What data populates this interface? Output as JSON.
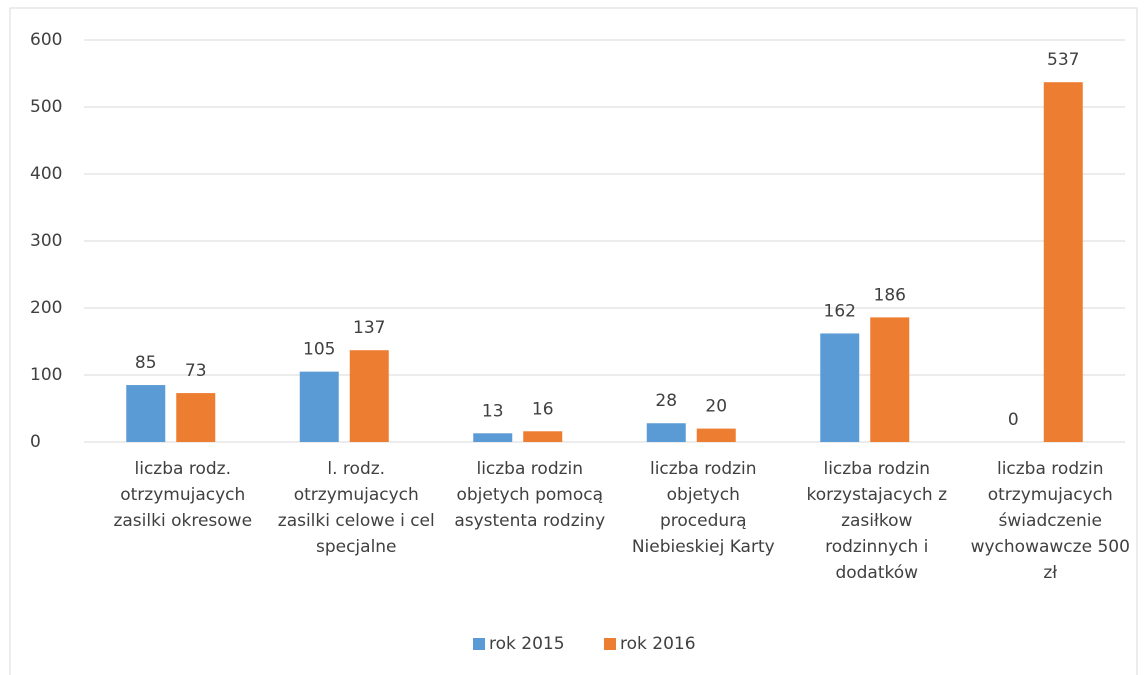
{
  "chart_data": {
    "type": "bar",
    "categories": [
      "liczba rodz. otrzymujacych zasilki okresowe",
      "l. rodz. otrzymujacych zasilki celowe i cel specjalne",
      "liczba rodzin objetych pomocą asystenta rodziny",
      "liczba rodzin objetych procedurą Niebieskiej Karty",
      "liczba rodzin korzystajacych z zasiłkow rodzinnych i dodatków",
      "liczba rodzin otrzymujacych świadczenie wychowawcze 500 zł"
    ],
    "series": [
      {
        "name": "rok 2015",
        "color": "#5b9bd5",
        "values": [
          85,
          105,
          13,
          28,
          162,
          0
        ]
      },
      {
        "name": "rok 2016",
        "color": "#ed7d31",
        "values": [
          73,
          137,
          16,
          20,
          186,
          537
        ]
      }
    ],
    "ylim": [
      0,
      600
    ],
    "yticks": [
      0,
      100,
      200,
      300,
      400,
      500,
      600
    ],
    "grid": true,
    "legend": "bottom"
  }
}
